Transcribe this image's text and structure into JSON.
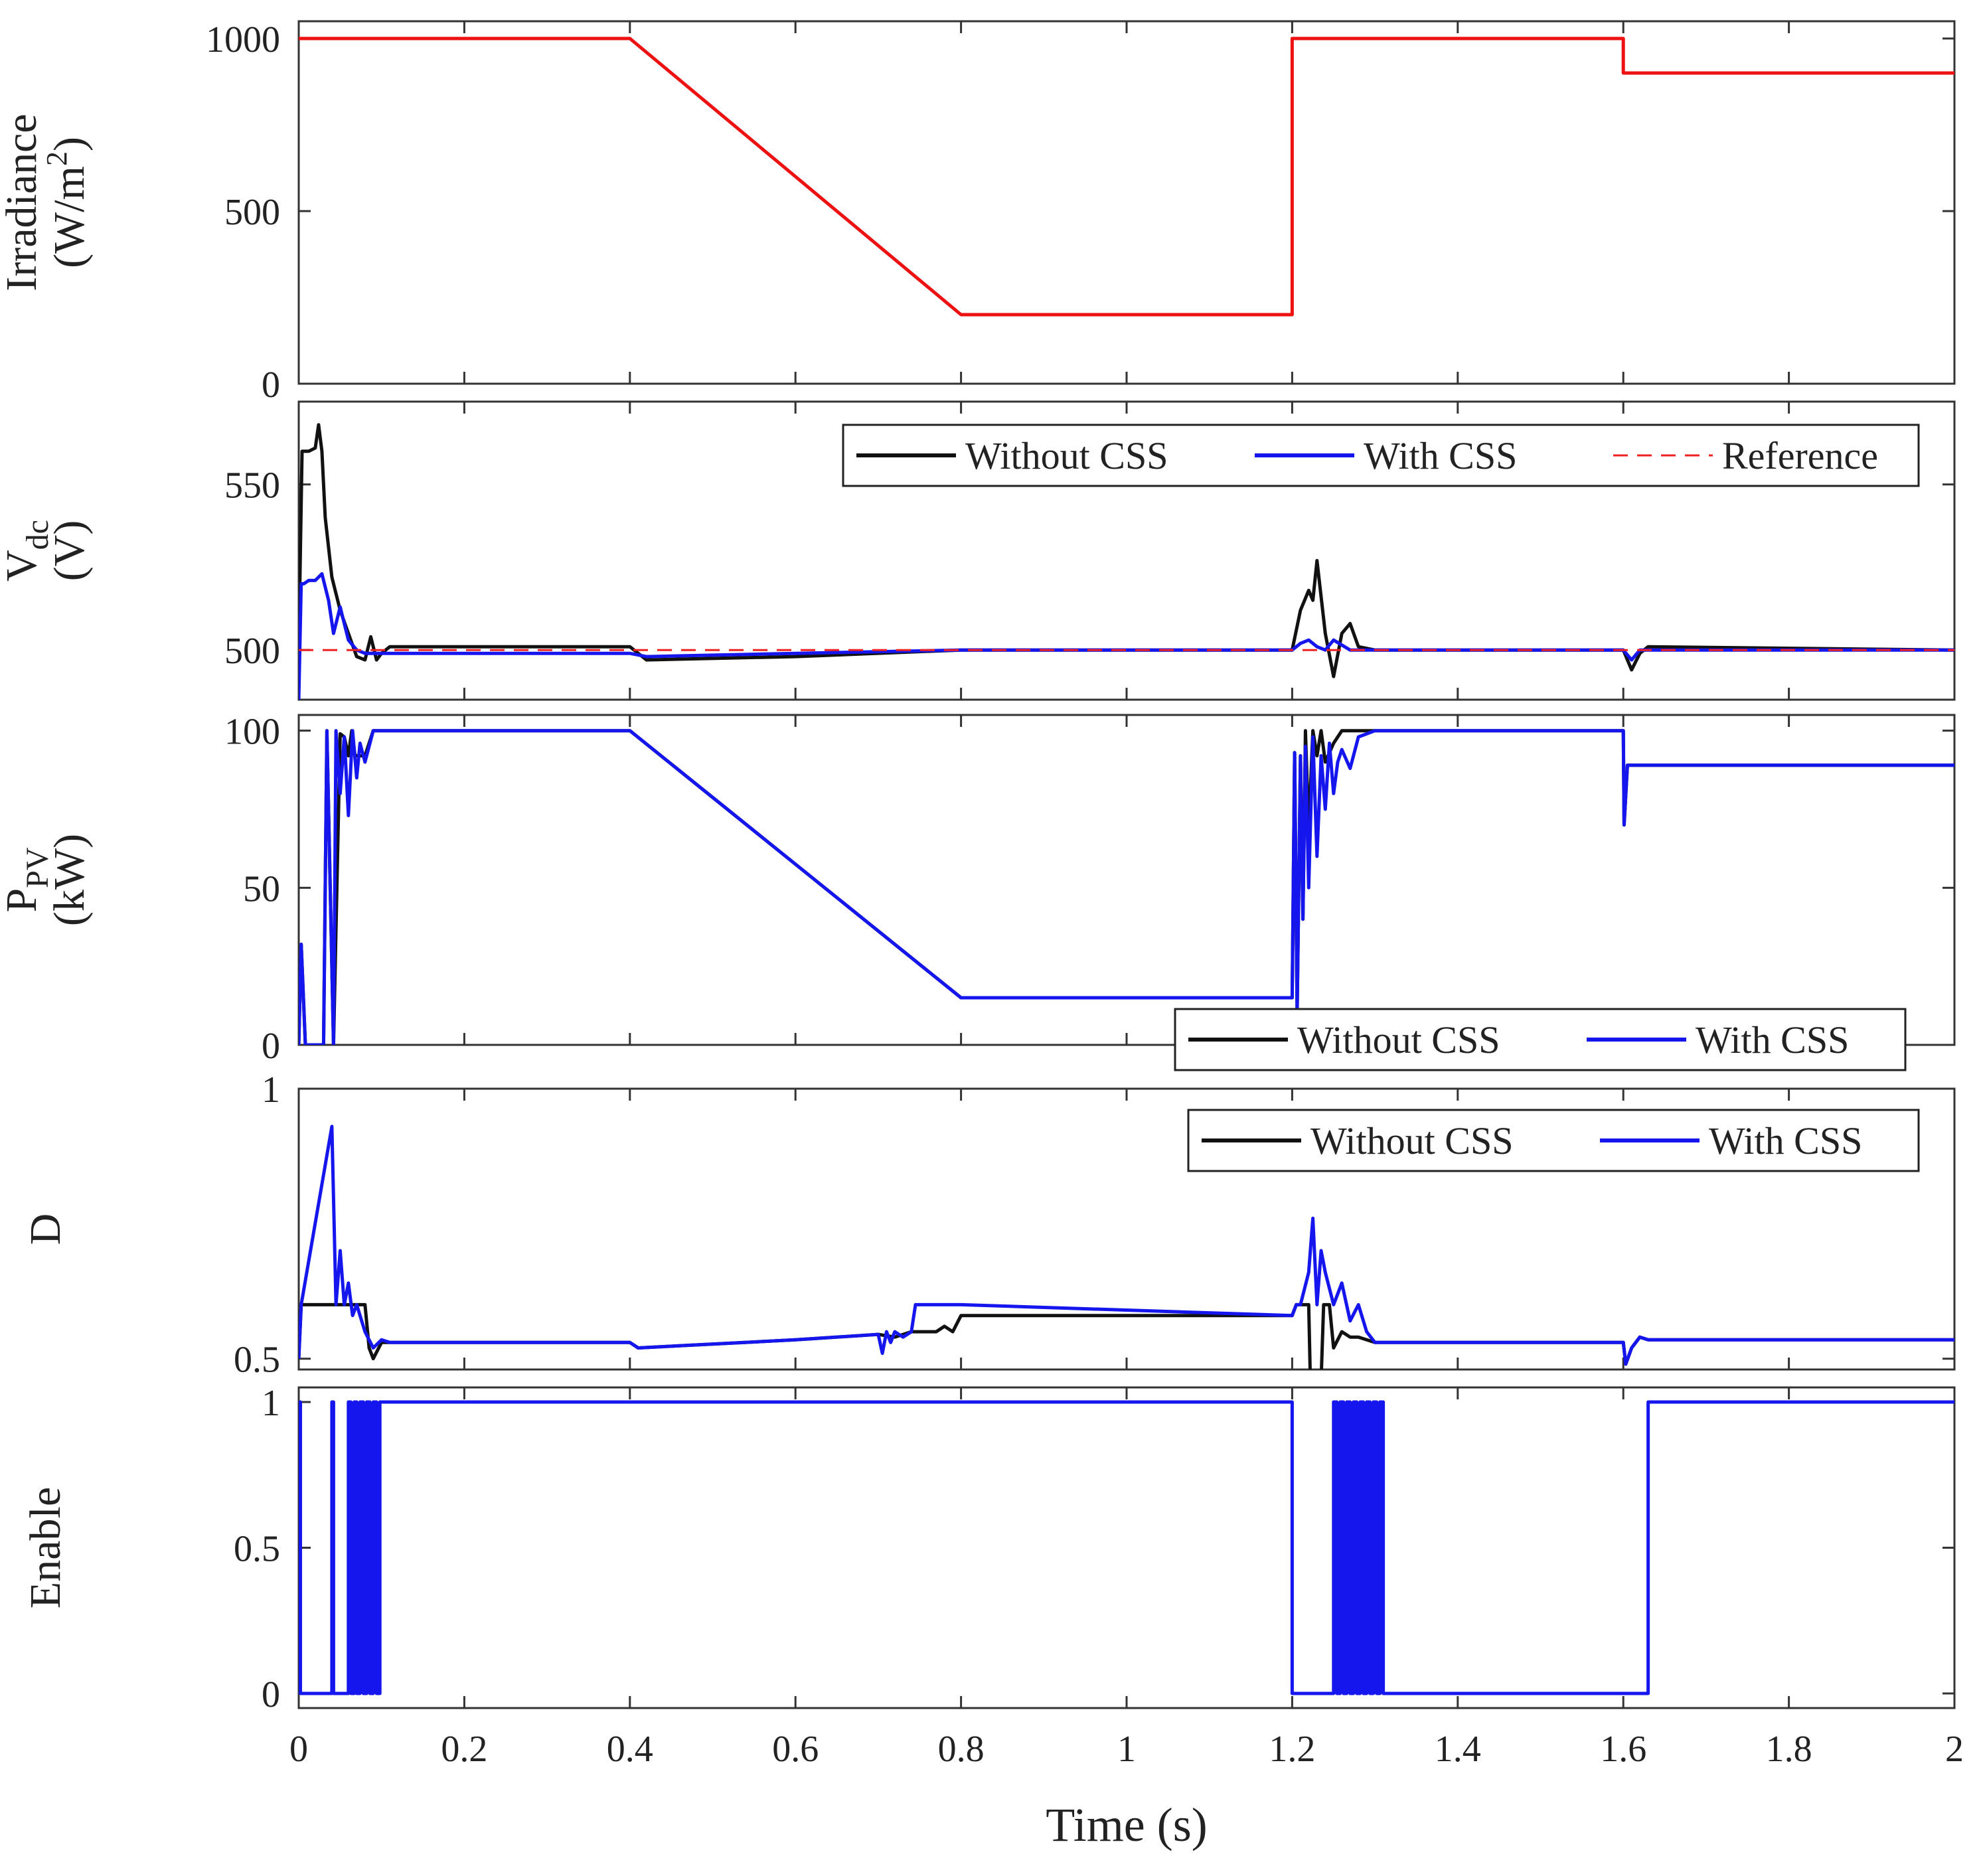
{
  "chart_data": [
    {
      "type": "line",
      "id": "irradiance",
      "ylabel": [
        "Irradiance",
        "(W/m2)"
      ],
      "ylim": [
        0,
        1050
      ],
      "yticks": [
        0,
        500,
        1000
      ],
      "xlim": [
        0,
        2
      ],
      "series": [
        {
          "name": "Irradiance",
          "color": "#ee1111",
          "dashed": false,
          "x": [
            0,
            0.4,
            0.8,
            1.2,
            1.2,
            1.6,
            1.6,
            2.0
          ],
          "y": [
            1000,
            1000,
            200,
            200,
            1000,
            1000,
            900,
            900
          ]
        }
      ]
    },
    {
      "type": "line",
      "id": "vdc",
      "ylabel": [
        "Vdc",
        "(V)"
      ],
      "ylim": [
        485,
        575
      ],
      "yticks": [
        500,
        550
      ],
      "xlim": [
        0,
        2
      ],
      "legend": [
        "Without CSS",
        "With CSS",
        "Reference"
      ],
      "series": [
        {
          "name": "Without CSS",
          "color": "#111111",
          "dashed": false,
          "x": [
            0,
            0.004,
            0.012,
            0.02,
            0.024,
            0.028,
            0.032,
            0.04,
            0.05,
            0.06,
            0.07,
            0.08,
            0.087,
            0.094,
            0.1,
            0.11,
            0.4,
            0.42,
            0.6,
            0.8,
            1.2,
            1.21,
            1.22,
            1.225,
            1.23,
            1.24,
            1.25,
            1.26,
            1.27,
            1.28,
            1.3,
            1.6,
            1.605,
            1.61,
            1.62,
            1.63,
            2.0
          ],
          "y": [
            500,
            560,
            560,
            561,
            568,
            560,
            540,
            522,
            512,
            505,
            498,
            497,
            504,
            497,
            499,
            501,
            501,
            497,
            498,
            500,
            500,
            512,
            518,
            515,
            527,
            505,
            492,
            505,
            508,
            501,
            500,
            500,
            497,
            494,
            499,
            501,
            500
          ]
        },
        {
          "name": "With CSS",
          "color": "#1515ee",
          "dashed": false,
          "x": [
            0,
            0.003,
            0.006,
            0.012,
            0.02,
            0.028,
            0.036,
            0.042,
            0.05,
            0.06,
            0.07,
            0.08,
            0.1,
            0.4,
            0.42,
            0.6,
            0.8,
            1.2,
            1.21,
            1.22,
            1.23,
            1.24,
            1.25,
            1.27,
            1.3,
            1.6,
            1.61,
            1.62,
            2.0
          ],
          "y": [
            485,
            520,
            520,
            521,
            521,
            523,
            515,
            505,
            513,
            503,
            500,
            499,
            499,
            499,
            498,
            499,
            500,
            500,
            502,
            503,
            501,
            500,
            503,
            500,
            500,
            500,
            497,
            500,
            500
          ]
        },
        {
          "name": "Reference",
          "color": "#ee2222",
          "dashed": true,
          "x": [
            0,
            2.0
          ],
          "y": [
            500,
            500
          ]
        }
      ]
    },
    {
      "type": "line",
      "id": "ppv",
      "ylabel": [
        "PPV",
        "(kW)"
      ],
      "ylim": [
        0,
        105
      ],
      "yticks": [
        0,
        50,
        100
      ],
      "xlim": [
        0,
        2
      ],
      "legend": [
        "Without CSS",
        "With CSS"
      ],
      "series": [
        {
          "name": "Without CSS",
          "color": "#111111",
          "dashed": false,
          "x": [
            0,
            0.003,
            0.008,
            0.016,
            0.03,
            0.034,
            0.042,
            0.05,
            0.055,
            0.06,
            0.064,
            0.068,
            0.08,
            0.09,
            0.1,
            0.4,
            0.8,
            1.2,
            1.203,
            1.206,
            1.21,
            1.213,
            1.216,
            1.22,
            1.225,
            1.23,
            1.235,
            1.24,
            1.25,
            1.26,
            1.28,
            1.3,
            1.6,
            1.601,
            1.605,
            2.0
          ],
          "y": [
            0,
            32,
            0,
            0,
            0,
            100,
            0,
            99,
            98,
            92,
            100,
            92,
            92,
            100,
            100,
            100,
            15,
            15,
            93,
            10,
            92,
            40,
            100,
            68,
            100,
            92,
            100,
            90,
            96,
            100,
            100,
            100,
            100,
            70,
            89,
            89
          ]
        },
        {
          "name": "With CSS",
          "color": "#1515ee",
          "dashed": false,
          "x": [
            0,
            0.003,
            0.008,
            0.016,
            0.03,
            0.034,
            0.042,
            0.045,
            0.05,
            0.055,
            0.06,
            0.065,
            0.07,
            0.074,
            0.08,
            0.09,
            0.1,
            0.4,
            0.8,
            1.2,
            1.203,
            1.206,
            1.21,
            1.213,
            1.216,
            1.22,
            1.225,
            1.23,
            1.235,
            1.24,
            1.245,
            1.25,
            1.255,
            1.26,
            1.27,
            1.28,
            1.3,
            1.6,
            1.601,
            1.605,
            2.0
          ],
          "y": [
            0,
            32,
            0,
            0,
            0,
            100,
            0,
            100,
            80,
            98,
            73,
            100,
            85,
            96,
            90,
            100,
            100,
            100,
            15,
            15,
            93,
            10,
            92,
            40,
            95,
            50,
            98,
            60,
            92,
            75,
            96,
            80,
            90,
            94,
            88,
            98,
            100,
            100,
            70,
            89,
            89
          ]
        }
      ]
    },
    {
      "type": "line",
      "id": "duty",
      "ylabel": [
        "D"
      ],
      "ylim": [
        0.48,
        1.0
      ],
      "yticks": [
        0.5,
        1
      ],
      "xlim": [
        0,
        2
      ],
      "legend": [
        "Without CSS",
        "With CSS"
      ],
      "series": [
        {
          "name": "Without CSS",
          "color": "#111111",
          "dashed": false,
          "x": [
            0,
            0.003,
            0.02,
            0.04,
            0.08,
            0.085,
            0.09,
            0.1,
            0.11,
            0.12,
            0.4,
            0.41,
            0.6,
            0.7,
            0.72,
            0.74,
            0.77,
            0.78,
            0.79,
            0.8,
            1.2,
            1.205,
            1.22,
            1.222,
            1.235,
            1.238,
            1.245,
            1.25,
            1.26,
            1.27,
            1.28,
            1.3,
            1.6,
            1.603,
            1.61,
            1.62,
            1.63,
            2.0
          ],
          "y": [
            0.5,
            0.6,
            0.6,
            0.6,
            0.6,
            0.52,
            0.5,
            0.53,
            0.53,
            0.53,
            0.53,
            0.52,
            0.535,
            0.545,
            0.54,
            0.55,
            0.55,
            0.56,
            0.55,
            0.58,
            0.58,
            0.6,
            0.6,
            0.46,
            0.46,
            0.6,
            0.6,
            0.52,
            0.55,
            0.54,
            0.54,
            0.53,
            0.53,
            0.49,
            0.52,
            0.54,
            0.535,
            0.535
          ]
        },
        {
          "name": "With CSS",
          "color": "#1515ee",
          "dashed": false,
          "x": [
            0,
            0.003,
            0.04,
            0.045,
            0.05,
            0.055,
            0.06,
            0.065,
            0.07,
            0.08,
            0.09,
            0.1,
            0.11,
            0.4,
            0.41,
            0.6,
            0.7,
            0.705,
            0.71,
            0.715,
            0.72,
            0.73,
            0.74,
            0.745,
            0.8,
            1.2,
            1.205,
            1.21,
            1.22,
            1.225,
            1.23,
            1.235,
            1.24,
            1.25,
            1.26,
            1.27,
            1.28,
            1.29,
            1.3,
            1.6,
            1.603,
            1.61,
            1.62,
            1.63,
            2.0
          ],
          "y": [
            0.5,
            0.6,
            0.93,
            0.6,
            0.7,
            0.6,
            0.64,
            0.58,
            0.6,
            0.55,
            0.52,
            0.535,
            0.53,
            0.53,
            0.52,
            0.535,
            0.545,
            0.51,
            0.55,
            0.53,
            0.55,
            0.54,
            0.55,
            0.6,
            0.6,
            0.58,
            0.6,
            0.6,
            0.66,
            0.76,
            0.6,
            0.7,
            0.66,
            0.6,
            0.64,
            0.57,
            0.6,
            0.55,
            0.53,
            0.53,
            0.49,
            0.52,
            0.54,
            0.535,
            0.535
          ]
        }
      ]
    },
    {
      "type": "line",
      "id": "enable",
      "ylabel": [
        "Enable"
      ],
      "ylim": [
        -0.05,
        1.05
      ],
      "yticks": [
        0,
        0.5,
        1
      ],
      "xlim": [
        0,
        2
      ],
      "xticks": [
        0,
        0.2,
        0.4,
        0.6,
        0.8,
        1,
        1.2,
        1.4,
        1.6,
        1.8,
        2
      ],
      "xlabel": "Time (s)",
      "series": [
        {
          "name": "Enable",
          "color": "#1515ee",
          "dashed": false,
          "x": [
            0,
            0.002,
            0.002,
            0.04,
            0.04,
            0.042,
            0.042,
            0.06,
            0.06,
            0.063,
            0.063,
            0.067,
            0.067,
            0.07,
            0.07,
            0.074,
            0.074,
            0.078,
            0.078,
            0.082,
            0.082,
            0.086,
            0.086,
            0.09,
            0.09,
            0.094,
            0.094,
            0.098,
            0.098,
            1.2,
            1.2,
            1.25,
            1.25,
            1.254,
            1.254,
            1.258,
            1.258,
            1.262,
            1.262,
            1.266,
            1.266,
            1.27,
            1.27,
            1.274,
            1.274,
            1.278,
            1.278,
            1.282,
            1.282,
            1.286,
            1.286,
            1.29,
            1.29,
            1.294,
            1.294,
            1.298,
            1.298,
            1.302,
            1.302,
            1.306,
            1.306,
            1.31,
            1.31,
            1.63,
            1.63,
            1.632,
            1.632,
            2.0
          ],
          "y": [
            1,
            1,
            0,
            0,
            1,
            1,
            0,
            0,
            1,
            1,
            0,
            0,
            1,
            1,
            0,
            0,
            1,
            1,
            0,
            0,
            1,
            1,
            0,
            0,
            1,
            1,
            0,
            0,
            1,
            1,
            0,
            0,
            1,
            1,
            0,
            0,
            1,
            1,
            0,
            0,
            1,
            1,
            0,
            0,
            1,
            1,
            0,
            0,
            1,
            1,
            0,
            0,
            1,
            1,
            0,
            0,
            1,
            1,
            0,
            0,
            1,
            1,
            0,
            0,
            1,
            1,
            1,
            1
          ]
        }
      ]
    }
  ]
}
